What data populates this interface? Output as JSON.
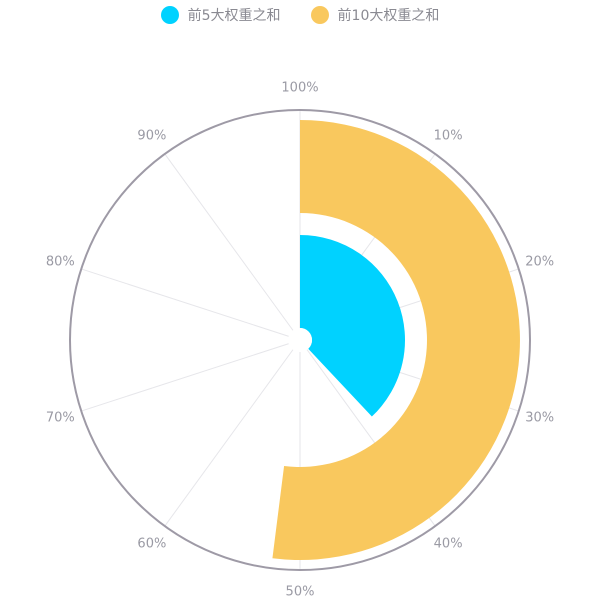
{
  "legend": [
    {
      "name": "前5大权重之和",
      "color": "#00d2ff"
    },
    {
      "name": "前10大权重之和",
      "color": "#f9c85e"
    }
  ],
  "chart_data": {
    "type": "polar-bar",
    "angle_axis": {
      "min": 0,
      "max": 100,
      "ticks": [
        "100%",
        "10%",
        "20%",
        "30%",
        "40%",
        "50%",
        "60%",
        "70%",
        "80%",
        "90%"
      ]
    },
    "series": [
      {
        "name": "前5大权重之和",
        "value": 38,
        "color": "#00d2ff"
      },
      {
        "name": "前10大权重之和",
        "value": 52,
        "color": "#f9c85e"
      }
    ]
  }
}
